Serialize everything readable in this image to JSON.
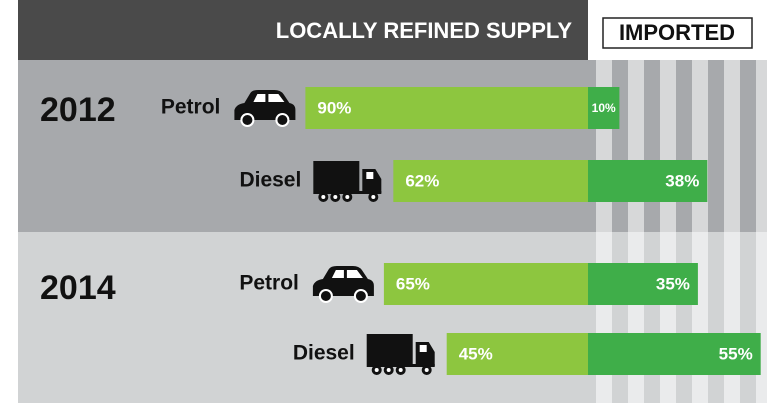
{
  "chart_data": {
    "type": "bar",
    "stacked": true,
    "orientation": "horizontal",
    "groups": [
      {
        "name": "2012",
        "categories": [
          "Petrol",
          "Diesel"
        ]
      },
      {
        "name": "2014",
        "categories": [
          "Petrol",
          "Diesel"
        ]
      }
    ],
    "series": [
      {
        "name": "LOCALLY REFINED SUPPLY",
        "color": "#8dc63f",
        "values": [
          90,
          62,
          65,
          45
        ],
        "value_labels": [
          "90%",
          "62%",
          "65%",
          "45%"
        ]
      },
      {
        "name": "IMPORTED",
        "color": "#3fae49",
        "values": [
          10,
          38,
          35,
          55
        ],
        "value_labels": [
          "10%",
          "38%",
          "35%",
          "55%"
        ]
      }
    ]
  }
}
